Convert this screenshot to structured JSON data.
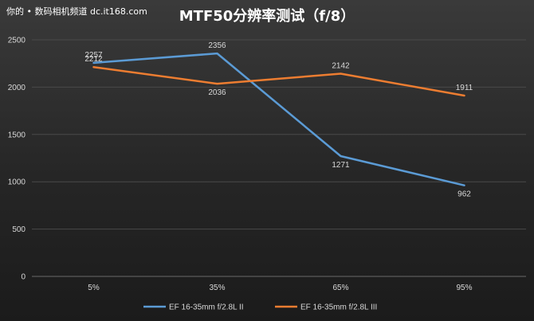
{
  "watermark": "你的 • 数码相机频道 dc.it168.com",
  "chart_data": {
    "type": "line",
    "title": "MTF50分辨率测试（f/8）",
    "categories": [
      "5%",
      "35%",
      "65%",
      "95%"
    ],
    "ylim": [
      0,
      2500
    ],
    "yticks": [
      0,
      500,
      1000,
      1500,
      2000,
      2500
    ],
    "grid": true,
    "legend_position": "bottom",
    "series": [
      {
        "name": "EF 16-35mm f/2.8L II",
        "color": "#5b9bd5",
        "values": [
          2257,
          2356,
          1271,
          962
        ]
      },
      {
        "name": "EF 16-35mm f/2.8L III",
        "color": "#ed7d31",
        "values": [
          2212,
          2036,
          2142,
          1911
        ]
      }
    ]
  }
}
